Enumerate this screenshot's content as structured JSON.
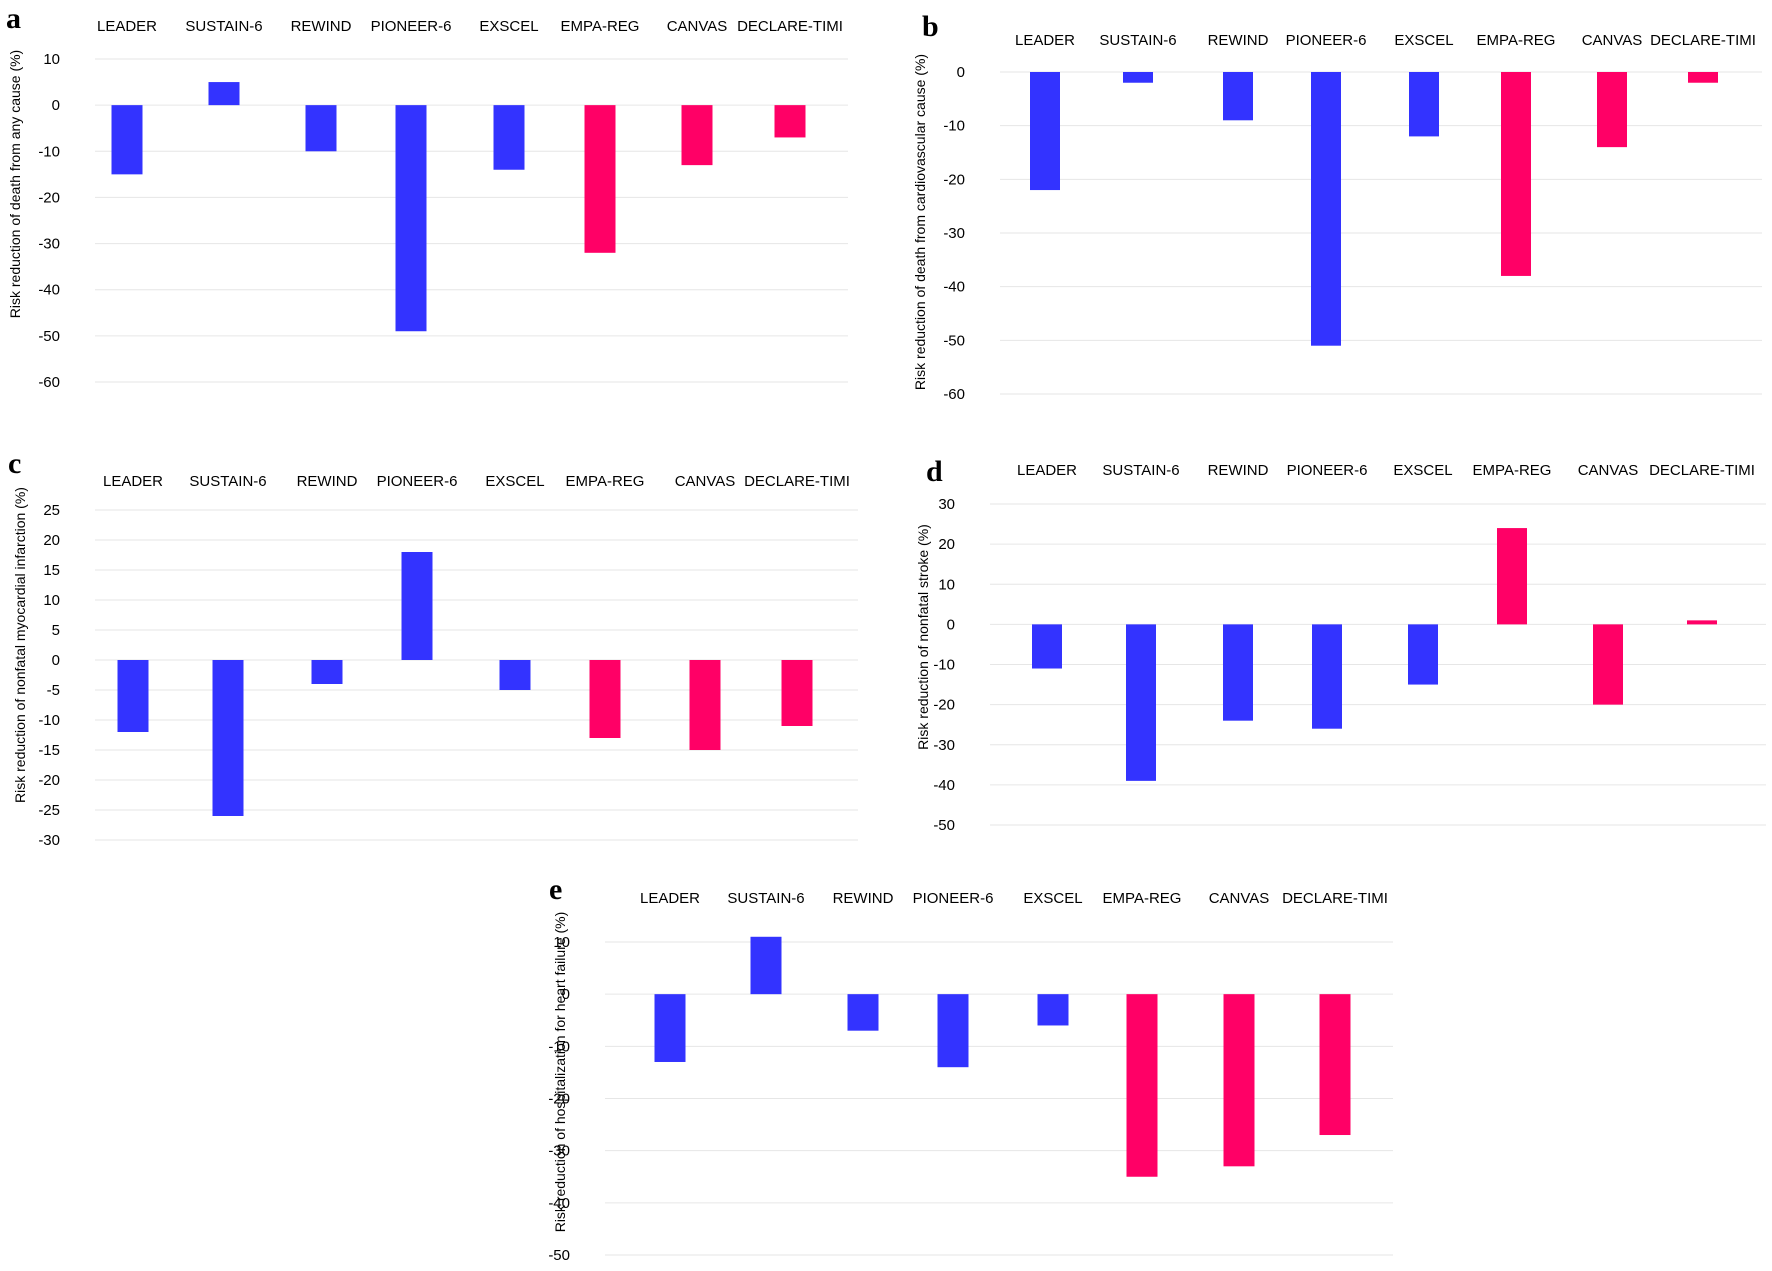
{
  "colors": {
    "glp1": "#3333ff",
    "sglt2": "#ff0066"
  },
  "chart_data": [
    {
      "id": "a",
      "type": "bar",
      "panel_label": "a",
      "ylabel": "Risk reduction of  death from any cause (%)",
      "categories": [
        "LEADER",
        "SUSTAIN-6",
        "REWIND",
        "PIONEER-6",
        "EXSCEL",
        "EMPA-REG",
        "CANVAS",
        "DECLARE-TIMI"
      ],
      "values": [
        -15,
        5,
        -10,
        -49,
        -14,
        -32,
        -13,
        -7
      ],
      "bar_colors": [
        "glp1",
        "glp1",
        "glp1",
        "glp1",
        "glp1",
        "sglt2",
        "sglt2",
        "sglt2"
      ],
      "yticks": [
        10,
        0,
        -10,
        -20,
        -30,
        -40,
        -50,
        -60
      ],
      "ylim": [
        -60,
        10
      ],
      "grid": true
    },
    {
      "id": "b",
      "type": "bar",
      "panel_label": "b",
      "ylabel": "Risk reduction of  death  from cardiovascular cause (%)",
      "categories": [
        "LEADER",
        "SUSTAIN-6",
        "REWIND",
        "PIONEER-6",
        "EXSCEL",
        "EMPA-REG",
        "CANVAS",
        "DECLARE-TIMI"
      ],
      "values": [
        -22,
        -2,
        -9,
        -51,
        -12,
        -38,
        -14,
        -2
      ],
      "bar_colors": [
        "glp1",
        "glp1",
        "glp1",
        "glp1",
        "glp1",
        "sglt2",
        "sglt2",
        "sglt2"
      ],
      "yticks": [
        0,
        -10,
        -20,
        -30,
        -40,
        -50,
        -60
      ],
      "ylim": [
        -60,
        0
      ],
      "grid": true
    },
    {
      "id": "c",
      "type": "bar",
      "panel_label": "c",
      "ylabel": "Risk reduction of nonfatal myocardial infarction (%)",
      "categories": [
        "LEADER",
        "SUSTAIN-6",
        "REWIND",
        "PIONEER-6",
        "EXSCEL",
        "EMPA-REG",
        "CANVAS",
        "DECLARE-TIMI"
      ],
      "values": [
        -12,
        -26,
        -4,
        18,
        -5,
        -13,
        -15,
        -11
      ],
      "bar_colors": [
        "glp1",
        "glp1",
        "glp1",
        "glp1",
        "glp1",
        "sglt2",
        "sglt2",
        "sglt2"
      ],
      "yticks": [
        25,
        20,
        15,
        10,
        5,
        0,
        -5,
        -10,
        -15,
        -20,
        -25,
        -30
      ],
      "ylim": [
        -30,
        25
      ],
      "grid": true
    },
    {
      "id": "d",
      "type": "bar",
      "panel_label": "d",
      "ylabel": "Risk reduction of nonfatal stroke (%)",
      "categories": [
        "LEADER",
        "SUSTAIN-6",
        "REWIND",
        "PIONEER-6",
        "EXSCEL",
        "EMPA-REG",
        "CANVAS",
        "DECLARE-TIMI"
      ],
      "values": [
        -11,
        -39,
        -24,
        -26,
        -15,
        24,
        -20,
        1
      ],
      "bar_colors": [
        "glp1",
        "glp1",
        "glp1",
        "glp1",
        "glp1",
        "sglt2",
        "sglt2",
        "sglt2"
      ],
      "yticks": [
        30,
        20,
        10,
        0,
        -10,
        -20,
        -30,
        -40,
        -50
      ],
      "ylim": [
        -50,
        30
      ],
      "grid": true
    },
    {
      "id": "e",
      "type": "bar",
      "panel_label": "e",
      "ylabel": "Risk reduction of hospitalization for heart failure (%)",
      "categories": [
        "LEADER",
        "SUSTAIN-6",
        "REWIND",
        "PIONEER-6",
        "EXSCEL",
        "EMPA-REG",
        "CANVAS",
        "DECLARE-TIMI"
      ],
      "values": [
        -13,
        11,
        -7,
        -14,
        -6,
        -35,
        -33,
        -27
      ],
      "bar_colors": [
        "glp1",
        "glp1",
        "glp1",
        "glp1",
        "glp1",
        "sglt2",
        "sglt2",
        "sglt2"
      ],
      "yticks": [
        10,
        0,
        -10,
        -20,
        -30,
        -40,
        -50
      ],
      "ylim": [
        -50,
        10
      ],
      "grid": true
    }
  ]
}
